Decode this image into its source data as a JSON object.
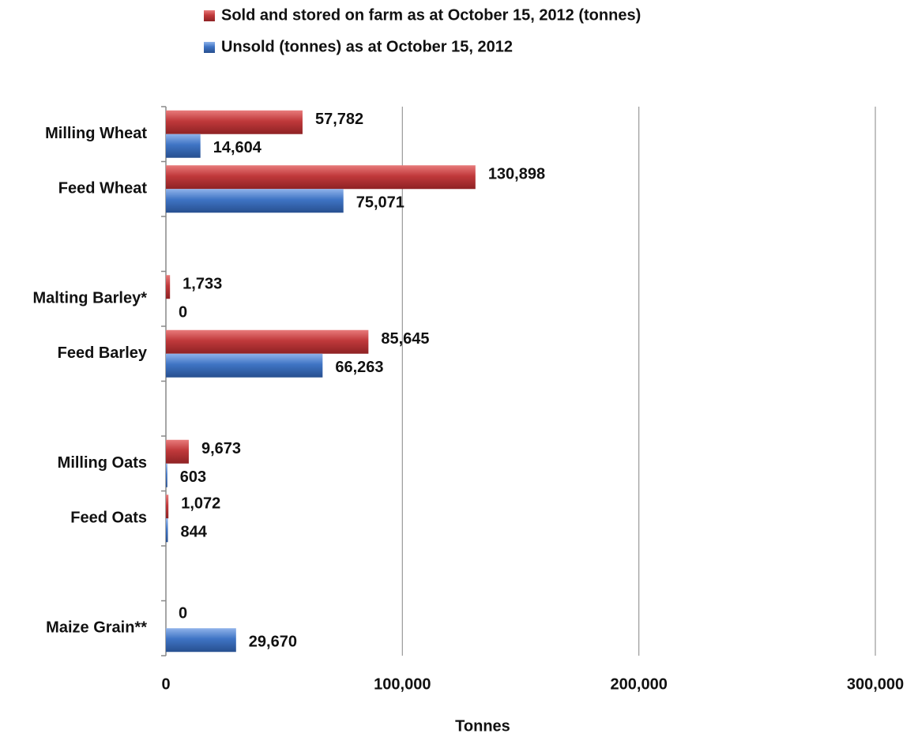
{
  "chart_data": {
    "type": "hbar",
    "x_label": "Tonnes",
    "categories": [
      "Milling Wheat",
      "Feed Wheat",
      null,
      "Malting Barley*",
      "Feed Barley",
      null,
      "Milling Oats",
      "Feed Oats",
      null,
      "Maize Grain**"
    ],
    "series": [
      {
        "name": "Sold and stored on farm as at October 15, 2012 (tonnes)",
        "color": "#c0393b",
        "values": [
          57782,
          130898,
          null,
          1733,
          85645,
          null,
          9673,
          1072,
          null,
          0
        ],
        "value_labels": [
          "57,782",
          "130,898",
          null,
          "1,733",
          "85,645",
          null,
          "9,673",
          "1,072",
          null,
          "0"
        ]
      },
      {
        "name": "Unsold (tonnes) as at October 15, 2012",
        "color": "#3f74c4",
        "values": [
          14604,
          75071,
          null,
          0,
          66263,
          null,
          603,
          844,
          null,
          29670
        ],
        "value_labels": [
          "14,604",
          "75,071",
          null,
          "0",
          "66,263",
          null,
          "603",
          "844",
          null,
          "29,670"
        ]
      }
    ],
    "xlim": [
      0,
      300000
    ],
    "xticks": [
      0,
      {
        "value": 100000,
        "label": "100,000"
      },
      {
        "value": 200000,
        "label": "200,000"
      },
      {
        "value": 300000,
        "label": "300,000"
      }
    ],
    "grid": true
  }
}
